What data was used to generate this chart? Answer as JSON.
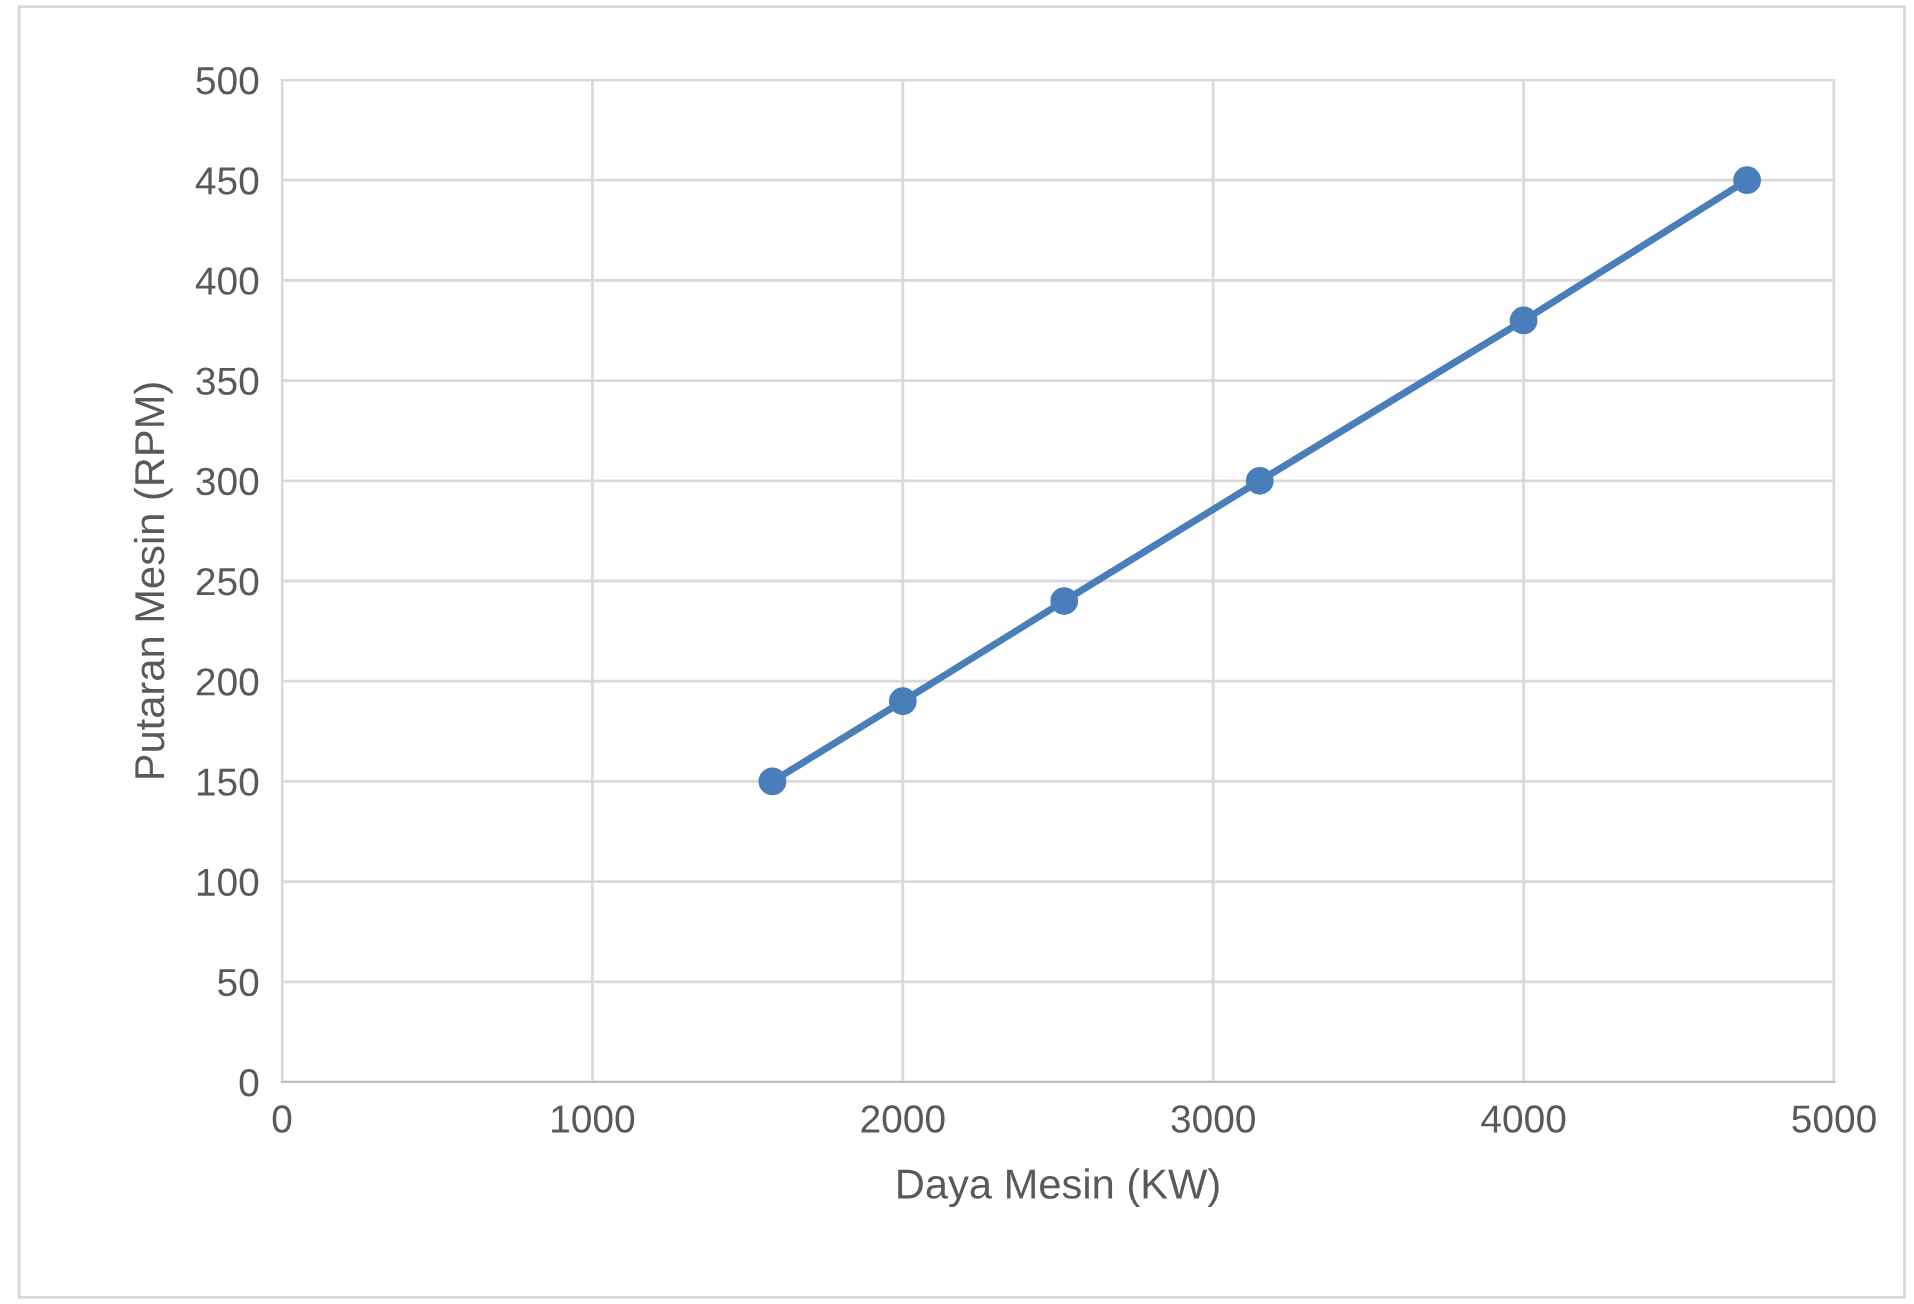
{
  "chart_data": {
    "type": "line",
    "xlabel": "Daya Mesin (KW)",
    "ylabel": "Putaran Mesin (RPM)",
    "x": [
      1580,
      2000,
      2520,
      3150,
      4000,
      4720
    ],
    "series": [
      {
        "color": "#4a7ebb",
        "values": [
          150,
          190,
          240,
          300,
          380,
          450
        ]
      }
    ],
    "xlim": [
      0,
      5000
    ],
    "xticks": [
      0,
      1000,
      2000,
      3000,
      4000,
      5000
    ],
    "ylim": [
      0,
      500
    ],
    "yticks": [
      0,
      50,
      100,
      150,
      200,
      250,
      300,
      350,
      400,
      450,
      500
    ],
    "grid": true,
    "marker": "circle",
    "line_style": "solid"
  }
}
